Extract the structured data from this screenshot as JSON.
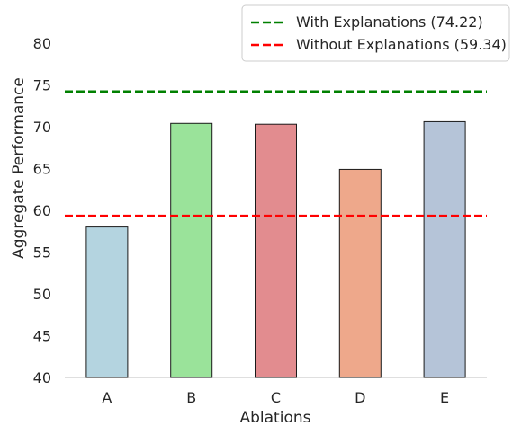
{
  "chart_data": {
    "type": "bar",
    "xlabel": "Ablations",
    "ylabel": "Aggregate Performance",
    "categories": [
      "A",
      "B",
      "C",
      "D",
      "E"
    ],
    "values": [
      58.0,
      70.4,
      70.3,
      64.9,
      70.6
    ],
    "bar_colors": [
      "#b4d4e0",
      "#9ae39a",
      "#e28c8f",
      "#eea88b",
      "#b5c4d8"
    ],
    "ylim": [
      40,
      80
    ],
    "yticks": [
      40,
      45,
      50,
      55,
      60,
      65,
      70,
      75,
      80
    ],
    "reference_lines": [
      {
        "label": "With Explanations (74.22)",
        "value": 74.22,
        "color": "#008000",
        "style": "dashed"
      },
      {
        "label": "Without Explanations (59.34)",
        "value": 59.34,
        "color": "#ff0000",
        "style": "dashed"
      }
    ],
    "grid": false,
    "legend_position": "top-right"
  }
}
